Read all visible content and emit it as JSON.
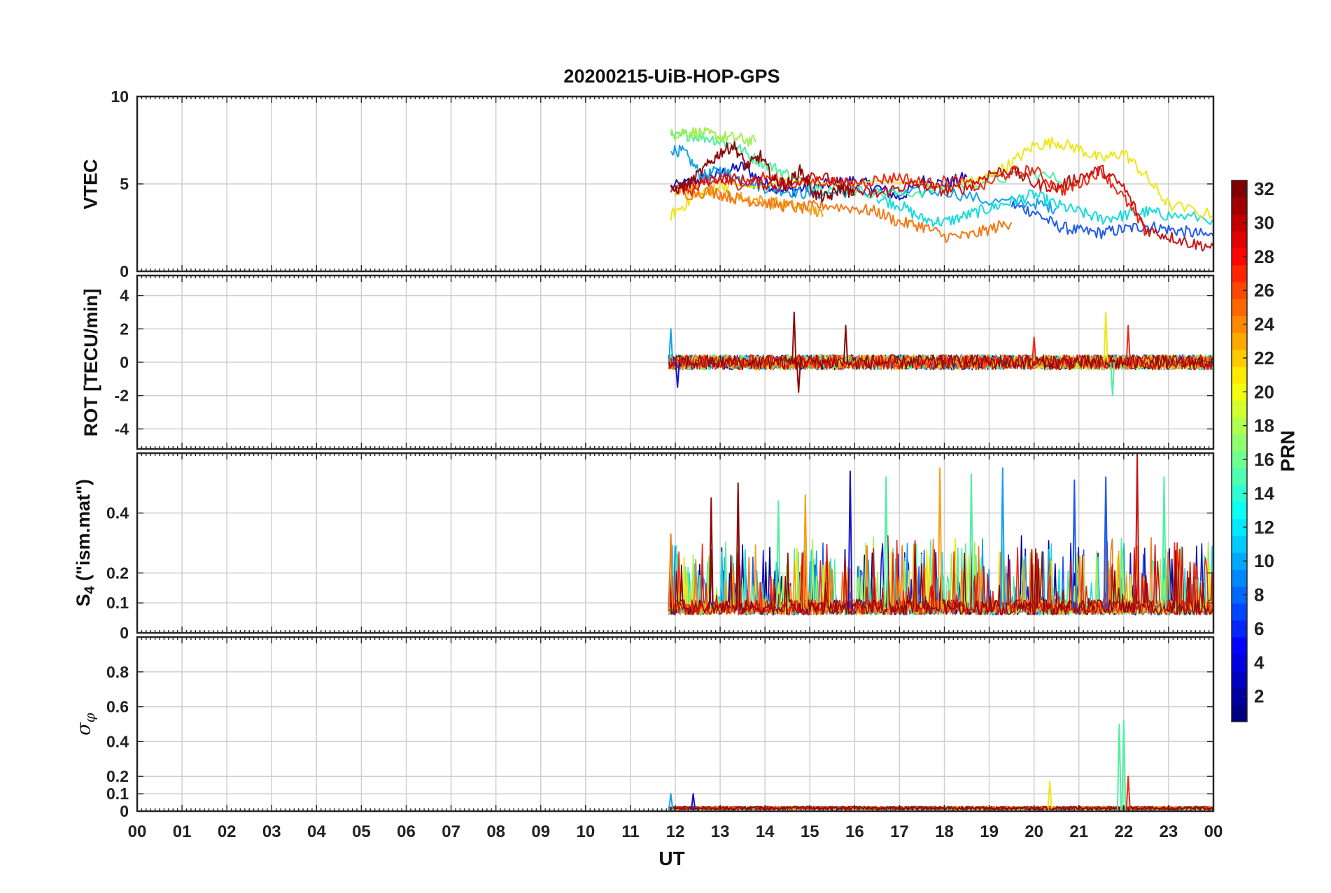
{
  "chart_data": [
    {
      "type": "line",
      "title": "20200215-UiB-HOP-GPS",
      "ylabel": "VTEC",
      "xlabel": "",
      "xlim": [
        0,
        24
      ],
      "ylim": [
        0,
        10
      ],
      "yticks": [
        0,
        5,
        10
      ],
      "grid": true,
      "series_description_data_start_hour": 11.85,
      "series": [
        {
          "prn": 2,
          "color": "#1414c8",
          "x": [
            11.9,
            12.5,
            13.0,
            13.5,
            14.0,
            14.5,
            15.0,
            15.5,
            16.0,
            16.5,
            17.0,
            17.5,
            18.0,
            18.5
          ],
          "y": [
            4.8,
            5.2,
            5.6,
            6.0,
            5.0,
            4.6,
            4.8,
            5.0,
            5.2,
            4.8,
            4.2,
            5.2,
            5.0,
            5.4
          ]
        },
        {
          "prn": 6,
          "color": "#1e5af0",
          "x": [
            19.5,
            20.0,
            20.5,
            21.0,
            21.5,
            22.0,
            22.5,
            23.0,
            23.5,
            24.0
          ],
          "y": [
            3.8,
            3.4,
            2.6,
            2.3,
            2.2,
            2.4,
            2.6,
            2.4,
            2.2,
            2.0
          ]
        },
        {
          "prn": 10,
          "color": "#14a0f0",
          "x": [
            11.9,
            12.2,
            12.6,
            13.0,
            13.5,
            14.0,
            14.5,
            15.0,
            16.0,
            17.0,
            18.0,
            19.0,
            20.0,
            20.5
          ],
          "y": [
            7.0,
            6.8,
            5.4,
            5.8,
            5.2,
            4.8,
            4.6,
            4.4,
            4.6,
            4.4,
            4.6,
            4.0,
            3.9,
            3.6
          ]
        },
        {
          "prn": 12,
          "color": "#14dcdc",
          "x": [
            16.5,
            17.0,
            17.5,
            18.0,
            18.5,
            19.0,
            19.5,
            20.0,
            20.5,
            21.0,
            21.5,
            22.0,
            22.5,
            23.0,
            24.0
          ],
          "y": [
            4.2,
            3.8,
            3.0,
            2.8,
            3.2,
            3.6,
            4.0,
            4.4,
            3.8,
            3.4,
            3.0,
            3.2,
            3.4,
            3.2,
            3.0
          ]
        },
        {
          "prn": 16,
          "color": "#50f0a0",
          "x": [
            11.9,
            12.3,
            12.8,
            13.3,
            13.8,
            14.3,
            14.8,
            15.3,
            16.0,
            17.0,
            18.0,
            19.0,
            20.0,
            21.0
          ],
          "y": [
            7.6,
            7.8,
            7.6,
            7.2,
            6.4,
            5.8,
            5.2,
            4.8,
            4.6,
            4.4,
            4.8,
            5.2,
            5.6,
            5.0
          ]
        },
        {
          "prn": 18,
          "color": "#a0f050",
          "x": [
            11.9,
            12.2,
            12.6,
            13.0,
            13.4,
            13.8
          ],
          "y": [
            7.8,
            8.0,
            7.9,
            7.7,
            7.6,
            7.4
          ]
        },
        {
          "prn": 20,
          "color": "#f0e614",
          "x": [
            11.9,
            12.3,
            12.8,
            13.3,
            18.5,
            19.0,
            19.5,
            20.0,
            20.5,
            21.0,
            21.5,
            22.0,
            22.5,
            23.0,
            24.0
          ],
          "y": [
            3.2,
            4.0,
            4.8,
            5.0,
            5.0,
            5.4,
            6.2,
            7.2,
            7.4,
            7.0,
            6.4,
            6.8,
            5.4,
            3.8,
            3.2
          ]
        },
        {
          "prn": 22,
          "color": "#f5a014",
          "x": [
            12.0,
            12.5,
            13.0,
            13.5,
            14.0,
            14.5,
            15.0,
            15.3
          ],
          "y": [
            4.6,
            4.8,
            4.4,
            4.2,
            4.0,
            3.8,
            3.6,
            3.2
          ]
        },
        {
          "prn": 24,
          "color": "#f57814",
          "x": [
            12.2,
            12.8,
            13.3,
            13.8,
            14.3,
            14.8,
            15.3,
            16.0,
            16.5,
            17.0,
            17.5,
            18.0,
            18.5,
            19.0,
            19.5
          ],
          "y": [
            4.4,
            4.6,
            4.2,
            4.0,
            3.8,
            3.6,
            3.8,
            3.6,
            3.4,
            2.8,
            2.6,
            2.0,
            2.0,
            2.4,
            2.8
          ]
        },
        {
          "prn": 28,
          "color": "#f02814",
          "x": [
            11.9,
            12.4,
            12.9,
            13.4,
            14.0,
            14.6,
            15.2,
            15.8,
            16.4,
            17.0,
            17.6,
            18.2,
            18.8,
            19.4,
            20.0,
            20.6,
            21.0,
            21.5,
            22.0,
            22.5
          ],
          "y": [
            4.8,
            4.6,
            5.2,
            5.0,
            5.4,
            5.0,
            5.2,
            5.0,
            5.2,
            5.4,
            5.0,
            5.2,
            4.8,
            5.6,
            5.8,
            4.6,
            5.0,
            5.8,
            4.2,
            2.2
          ]
        },
        {
          "prn": 30,
          "color": "#c81414",
          "x": [
            12.0,
            12.5,
            13.0,
            13.5,
            14.0,
            14.5,
            15.0,
            15.5,
            16.0,
            16.5,
            17.0,
            17.5,
            18.0,
            18.5,
            19.0,
            19.5,
            20.0,
            20.5,
            21.0,
            21.5,
            22.0,
            22.5,
            23.0,
            23.5,
            24.0
          ],
          "y": [
            4.8,
            5.0,
            5.4,
            5.2,
            5.0,
            4.8,
            5.6,
            5.2,
            4.6,
            4.4,
            4.8,
            5.0,
            4.6,
            4.8,
            5.6,
            5.8,
            5.0,
            4.8,
            5.4,
            5.8,
            4.8,
            2.4,
            2.0,
            1.6,
            1.4
          ]
        },
        {
          "prn": 32,
          "color": "#8c0a0a",
          "x": [
            11.9,
            12.3,
            12.7,
            13.0,
            13.3,
            13.6,
            13.9,
            14.2,
            14.5,
            14.8,
            15.1,
            15.4,
            15.7,
            16.0
          ],
          "y": [
            4.6,
            5.0,
            6.0,
            6.8,
            7.2,
            6.0,
            6.6,
            5.2,
            5.0,
            5.8,
            4.4,
            4.2,
            4.8,
            4.4
          ]
        }
      ]
    },
    {
      "type": "line",
      "title": "",
      "ylabel": "ROT [TECU/min]",
      "xlim": [
        0,
        24
      ],
      "ylim": [
        -5.2,
        5.2
      ],
      "yticks": [
        -4,
        -2,
        0,
        2,
        4
      ],
      "grid": true,
      "value_range_description": "Fluctuations about 0 between 11.85 and 24 UT, mostly within ±1 TECU/min; peaks near 14.6 UT (≈3), 15.8 UT (≈2), 21.6 UT (≈3), and ≈-2 near 22 UT.",
      "peaks": [
        {
          "x": 11.9,
          "y": 2.0,
          "color": "#14a0f0"
        },
        {
          "x": 12.05,
          "y": -1.5,
          "color": "#1414c8"
        },
        {
          "x": 14.65,
          "y": 3.0,
          "color": "#8c0a0a"
        },
        {
          "x": 14.75,
          "y": -1.8,
          "color": "#8c0a0a"
        },
        {
          "x": 15.8,
          "y": 2.2,
          "color": "#8c0a0a"
        },
        {
          "x": 20.0,
          "y": 1.5,
          "color": "#f02814"
        },
        {
          "x": 21.6,
          "y": 3.0,
          "color": "#f0e614"
        },
        {
          "x": 21.75,
          "y": -2.0,
          "color": "#50f0a0"
        },
        {
          "x": 22.1,
          "y": 2.2,
          "color": "#f02814"
        }
      ]
    },
    {
      "type": "line",
      "title": "",
      "ylabel": "S4 (\"ism.mat\")",
      "xlim": [
        0,
        24
      ],
      "ylim": [
        0,
        0.6
      ],
      "yticks": [
        0,
        0.1,
        0.2,
        0.4
      ],
      "grid": true,
      "value_range_description": "Baseline ≈0.05–0.15 from 11.85 to 24 UT with spikes up to ≈0.6.",
      "peaks": [
        {
          "x": 11.9,
          "y": 0.33,
          "color": "#f57814"
        },
        {
          "x": 12.8,
          "y": 0.45,
          "color": "#8c0a0a"
        },
        {
          "x": 13.4,
          "y": 0.5,
          "color": "#8c0a0a"
        },
        {
          "x": 14.3,
          "y": 0.44,
          "color": "#50f0a0"
        },
        {
          "x": 14.9,
          "y": 0.46,
          "color": "#f5a014"
        },
        {
          "x": 15.9,
          "y": 0.54,
          "color": "#1414c8"
        },
        {
          "x": 16.7,
          "y": 0.52,
          "color": "#50f0a0"
        },
        {
          "x": 17.9,
          "y": 0.55,
          "color": "#f5a014"
        },
        {
          "x": 18.6,
          "y": 0.53,
          "color": "#50f0a0"
        },
        {
          "x": 19.3,
          "y": 0.55,
          "color": "#14a0f0"
        },
        {
          "x": 20.9,
          "y": 0.51,
          "color": "#1e5af0"
        },
        {
          "x": 21.6,
          "y": 0.52,
          "color": "#1e5af0"
        },
        {
          "x": 22.3,
          "y": 0.6,
          "color": "#c81414"
        },
        {
          "x": 22.9,
          "y": 0.52,
          "color": "#50f0a0"
        }
      ]
    },
    {
      "type": "line",
      "title": "",
      "ylabel": "σ_φ",
      "xlabel": "UT",
      "xlim": [
        0,
        24
      ],
      "ylim": [
        0,
        1.0
      ],
      "yticks": [
        0,
        0.1,
        0.2,
        0.4,
        0.6,
        0.8
      ],
      "grid": true,
      "value_range_description": "Values near 0.01–0.03 from 11.85 to 24 UT, with spikes up to ≈0.5.",
      "peaks": [
        {
          "x": 11.9,
          "y": 0.1,
          "color": "#14a0f0"
        },
        {
          "x": 12.4,
          "y": 0.1,
          "color": "#1414c8"
        },
        {
          "x": 20.35,
          "y": 0.17,
          "color": "#f0e614"
        },
        {
          "x": 21.9,
          "y": 0.5,
          "color": "#50f0a0"
        },
        {
          "x": 22.0,
          "y": 0.52,
          "color": "#50f0a0"
        },
        {
          "x": 22.1,
          "y": 0.2,
          "color": "#f02814"
        }
      ]
    }
  ],
  "x_tick_labels": [
    "00",
    "01",
    "02",
    "03",
    "04",
    "05",
    "06",
    "07",
    "08",
    "09",
    "10",
    "11",
    "12",
    "13",
    "14",
    "15",
    "16",
    "17",
    "18",
    "19",
    "20",
    "21",
    "22",
    "23",
    "00"
  ],
  "colorbar": {
    "label": "PRN",
    "min": 1,
    "max": 32,
    "tick_labels": [
      "2",
      "4",
      "6",
      "8",
      "10",
      "12",
      "14",
      "16",
      "18",
      "20",
      "22",
      "24",
      "26",
      "28",
      "30",
      "32"
    ],
    "colormap": "jet"
  },
  "labels": {
    "title": "20200215-UiB-HOP-GPS",
    "xlabel": "UT",
    "panel1_ylabel": "VTEC",
    "panel2_ylabel": "ROT [TECU/min]",
    "panel3_ylabel_main": "S",
    "panel3_ylabel_sub": "4",
    "panel3_ylabel_rest": " (\"ism.mat\")",
    "panel4_ylabel_main": "σ",
    "panel4_ylabel_sub": "φ",
    "colorbar_label": "PRN"
  }
}
